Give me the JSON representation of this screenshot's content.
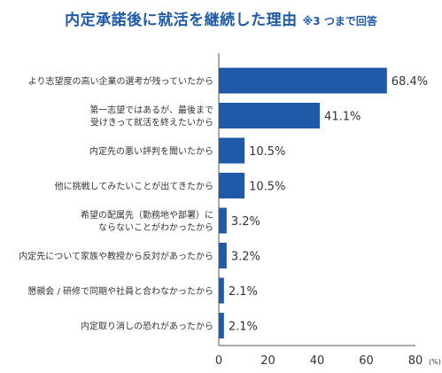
{
  "title": "内定承諾後に就活を継続した理由",
  "subtitle": "※3 つまで回答",
  "colors": {
    "bar": "#1e5aa8",
    "title": "#1e5aa8",
    "text": "#333333"
  },
  "chart_data": {
    "type": "bar",
    "orientation": "horizontal",
    "categories": [
      [
        "より志望度の高い企業の選考が残っていたから"
      ],
      [
        "第一志望ではあるが、最後まで",
        "受けきって就活を終えたいから"
      ],
      [
        "内定先の悪い評判を聞いたから"
      ],
      [
        "他に挑戦してみたいことが出てきたから"
      ],
      [
        "希望の配属先（勤務地や部署）に",
        "ならないことがわかったから"
      ],
      [
        "内定先について家族や教授から反対があったから"
      ],
      [
        "懇親会 / 研修で同期や社員と合わなかったから"
      ],
      [
        "内定取り消しの恐れがあったから"
      ]
    ],
    "values": [
      68.4,
      41.1,
      10.5,
      10.5,
      3.2,
      3.2,
      2.1,
      2.1
    ],
    "value_labels": [
      "68.4%",
      "41.1%",
      "10.5%",
      "10.5%",
      "3.2%",
      "3.2%",
      "2.1%",
      "2.1%"
    ],
    "xlim": [
      0,
      80
    ],
    "xticks": [
      0,
      20,
      40,
      60,
      80
    ],
    "x_unit": "(%)",
    "grid": false,
    "legend": "none"
  }
}
